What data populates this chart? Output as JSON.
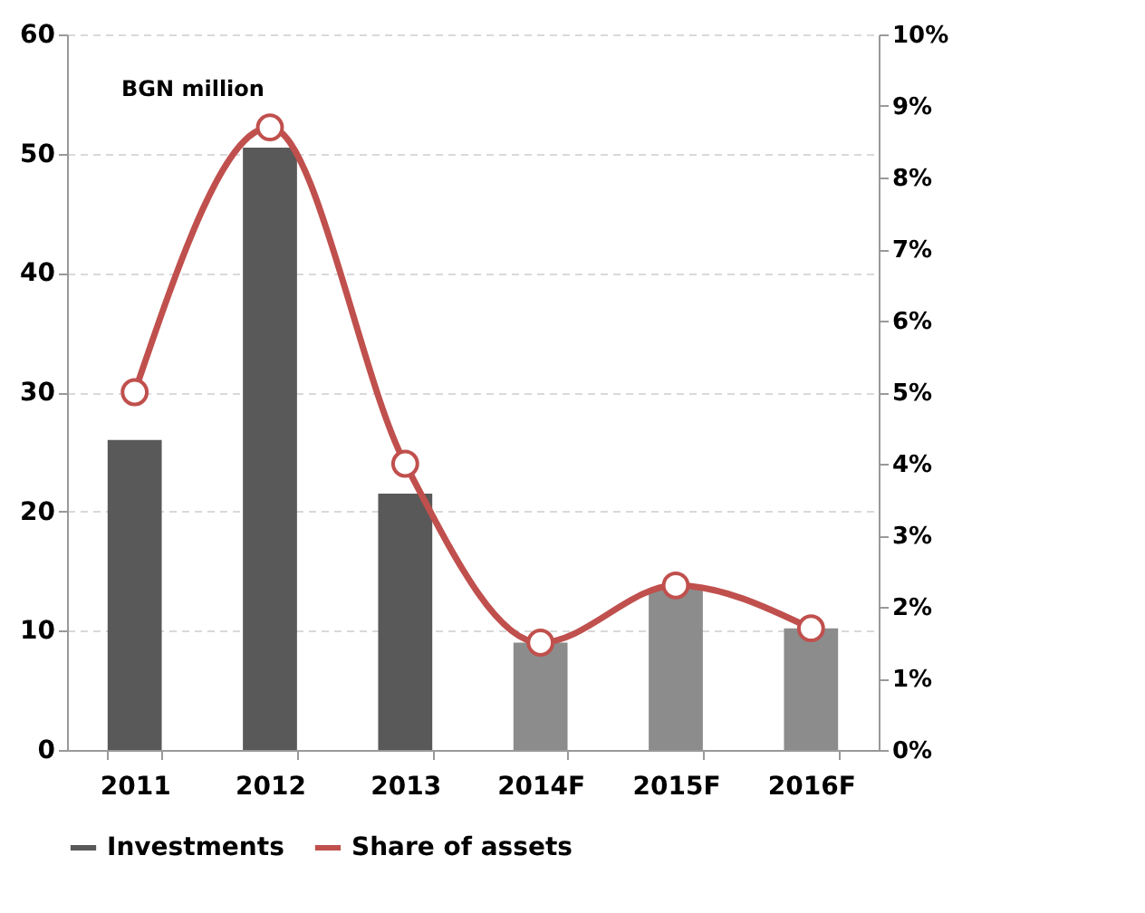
{
  "chart_data": {
    "type": "bar",
    "annotations": [
      "BGN million"
    ],
    "categories": [
      "2011",
      "2012",
      "2013",
      "2014F",
      "2015F",
      "2016F"
    ],
    "series": [
      {
        "name": "Investments",
        "color": "#595959",
        "colors": [
          "#595959",
          "#595959",
          "#595959",
          "#8c8c8c",
          "#8c8c8c",
          "#8c8c8c"
        ],
        "values": [
          26,
          50.5,
          21.5,
          9,
          13.5,
          10.2
        ]
      },
      {
        "name": "Share of assets",
        "type": "line",
        "axis": "y2",
        "color": "#c0504d",
        "values": [
          5,
          8.7,
          4.0,
          1.5,
          2.3,
          1.7
        ]
      }
    ],
    "ylim": [
      0,
      60
    ],
    "yticks": [
      0,
      10,
      20,
      30,
      40,
      50,
      60
    ],
    "y2lim": [
      0,
      10
    ],
    "y2ticks": [
      {
        "value": 0,
        "label": "0%"
      },
      {
        "value": 1,
        "label": "1%"
      },
      {
        "value": 2,
        "label": "2%"
      },
      {
        "value": 3,
        "label": "3%"
      },
      {
        "value": 4,
        "label": "4%"
      },
      {
        "value": 5,
        "label": "5%"
      },
      {
        "value": 6,
        "label": "6%"
      },
      {
        "value": 7,
        "label": "7%"
      },
      {
        "value": 8,
        "label": "8%"
      },
      {
        "value": 9,
        "label": "9%"
      },
      {
        "value": 10,
        "label": "10%"
      }
    ],
    "grid": "y",
    "legend": "bottom",
    "marker": "circle",
    "line_style": "solid"
  }
}
